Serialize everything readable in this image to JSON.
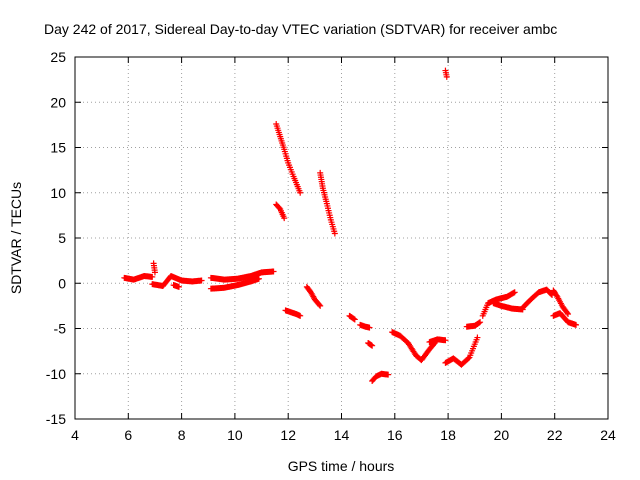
{
  "chart_data": {
    "type": "scatter",
    "title": "Day 242 of 2017, Sidereal Day-to-day VTEC variation (SDTVAR) for receiver ambc",
    "xlabel": "GPS time / hours",
    "ylabel": "SDTVAR / TECUs",
    "xlim": [
      4,
      24
    ],
    "ylim": [
      -15,
      25
    ],
    "xticks": [
      4,
      6,
      8,
      10,
      12,
      14,
      16,
      18,
      20,
      22,
      24
    ],
    "yticks": [
      -15,
      -10,
      -5,
      0,
      5,
      10,
      15,
      20,
      25
    ],
    "grid": true,
    "marker": "plus",
    "color": "#ff0000",
    "segments": [
      {
        "x": [
          5.85,
          6.2,
          6.6,
          6.9
        ],
        "y": [
          0.6,
          0.4,
          0.8,
          0.7
        ]
      },
      {
        "x": [
          6.95,
          7.0
        ],
        "y": [
          2.2,
          1.2
        ]
      },
      {
        "x": [
          6.9,
          7.3,
          7.6,
          8.0,
          8.4,
          8.75
        ],
        "y": [
          -0.1,
          -0.3,
          0.8,
          0.3,
          0.2,
          0.3
        ]
      },
      {
        "x": [
          7.7,
          7.9
        ],
        "y": [
          -0.2,
          -0.4
        ]
      },
      {
        "x": [
          9.1,
          9.6,
          10.1,
          10.6,
          10.9
        ],
        "y": [
          -0.6,
          -0.5,
          -0.2,
          0.2,
          0.5
        ]
      },
      {
        "x": [
          9.1,
          9.6,
          10.1,
          10.6,
          11.0,
          11.45
        ],
        "y": [
          0.6,
          0.4,
          0.5,
          0.8,
          1.2,
          1.3
        ]
      },
      {
        "x": [
          11.55,
          11.7,
          11.85,
          12.0,
          12.2,
          12.45
        ],
        "y": [
          17.6,
          16.2,
          14.8,
          13.3,
          11.8,
          10.0
        ]
      },
      {
        "x": [
          11.55,
          11.7,
          11.85
        ],
        "y": [
          8.7,
          8.2,
          7.2
        ]
      },
      {
        "x": [
          11.9,
          12.1,
          12.3,
          12.45
        ],
        "y": [
          -3.0,
          -3.2,
          -3.4,
          -3.6
        ]
      },
      {
        "x": [
          12.7,
          12.85,
          13.0,
          13.2
        ],
        "y": [
          -0.4,
          -1.0,
          -1.8,
          -2.5
        ]
      },
      {
        "x": [
          13.2,
          13.3,
          13.45,
          13.6,
          13.75
        ],
        "y": [
          12.2,
          10.5,
          8.8,
          7.0,
          5.5
        ]
      },
      {
        "x": [
          14.3,
          14.5
        ],
        "y": [
          -3.6,
          -4.0
        ]
      },
      {
        "x": [
          14.7,
          14.9,
          15.05
        ],
        "y": [
          -4.6,
          -4.8,
          -4.9
        ]
      },
      {
        "x": [
          15.0,
          15.15
        ],
        "y": [
          -6.6,
          -6.9
        ]
      },
      {
        "x": [
          15.15,
          15.3,
          15.5,
          15.75
        ],
        "y": [
          -10.8,
          -10.3,
          -10.0,
          -10.1
        ]
      },
      {
        "x": [
          15.9,
          16.2,
          16.5,
          16.8,
          17.0,
          17.3,
          17.5
        ],
        "y": [
          -5.4,
          -5.8,
          -6.6,
          -8.0,
          -8.5,
          -7.3,
          -6.6
        ]
      },
      {
        "x": [
          17.3,
          17.6,
          17.9
        ],
        "y": [
          -6.5,
          -6.2,
          -6.3
        ]
      },
      {
        "x": [
          17.9,
          17.95
        ],
        "y": [
          23.5,
          22.8
        ]
      },
      {
        "x": [
          17.9,
          18.2,
          18.5,
          18.8,
          19.1
        ],
        "y": [
          -8.8,
          -8.3,
          -9.0,
          -8.2,
          -6.0
        ]
      },
      {
        "x": [
          18.7,
          19.0,
          19.2
        ],
        "y": [
          -4.8,
          -4.7,
          -4.3
        ]
      },
      {
        "x": [
          19.3,
          19.5,
          19.8,
          20.2,
          20.5
        ],
        "y": [
          -3.6,
          -2.2,
          -1.8,
          -1.5,
          -1.0
        ]
      },
      {
        "x": [
          19.7,
          20.0,
          20.4,
          20.8
        ],
        "y": [
          -2.2,
          -2.5,
          -2.8,
          -2.9
        ]
      },
      {
        "x": [
          20.8,
          21.1,
          21.4,
          21.7,
          21.9
        ],
        "y": [
          -2.7,
          -1.8,
          -1.0,
          -0.7,
          -1.3
        ]
      },
      {
        "x": [
          21.95,
          22.1,
          22.3,
          22.5
        ],
        "y": [
          -0.8,
          -1.5,
          -2.6,
          -3.4
        ]
      },
      {
        "x": [
          21.95,
          22.2,
          22.5,
          22.8
        ],
        "y": [
          -3.6,
          -3.3,
          -4.3,
          -4.6
        ]
      }
    ]
  }
}
